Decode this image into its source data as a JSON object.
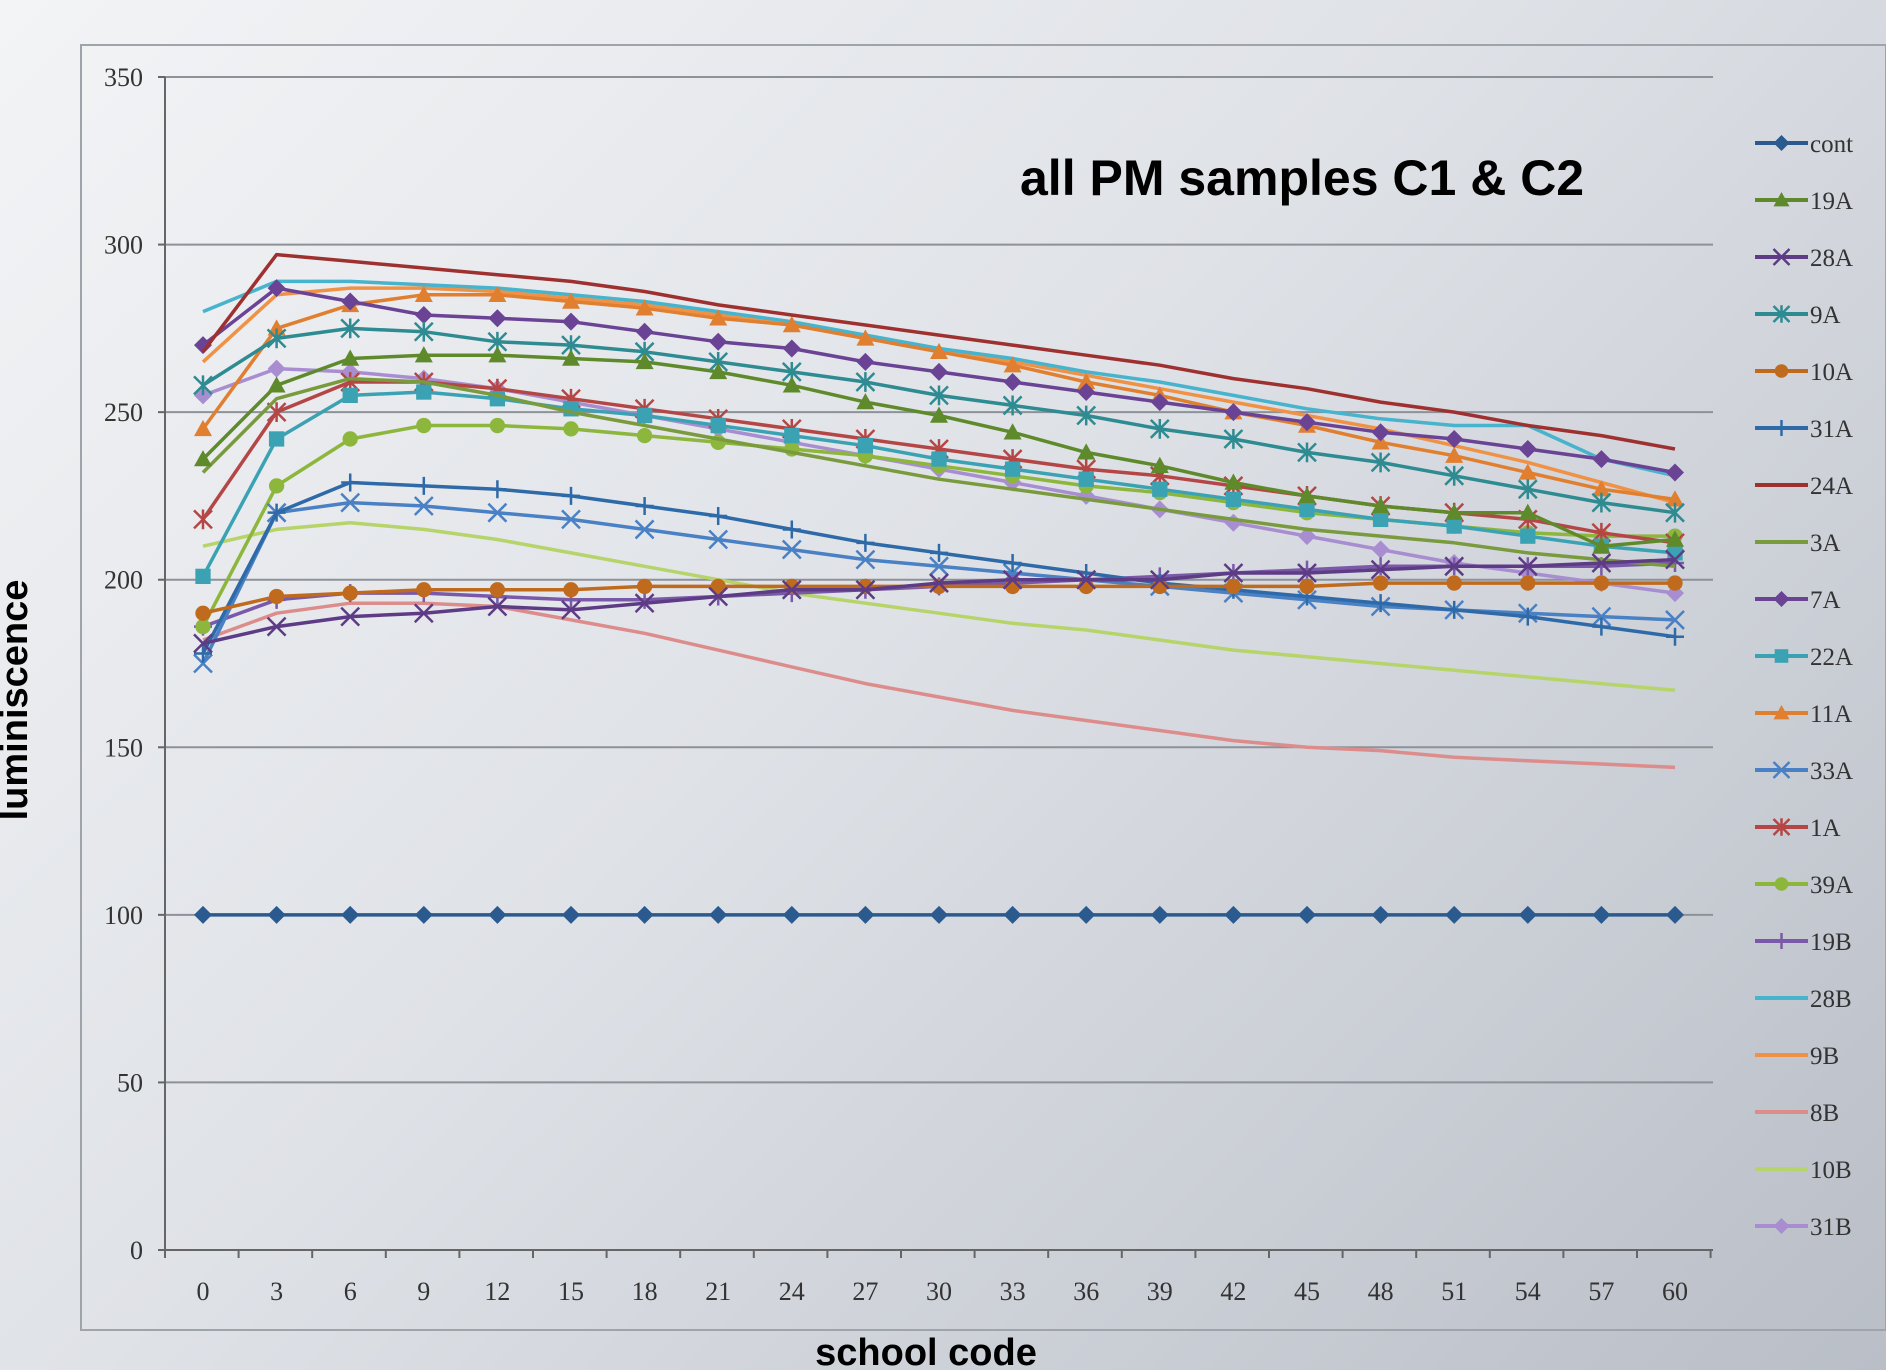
{
  "chart_data": {
    "type": "line",
    "title": "all PM samples C1 & C2",
    "xlabel": "school code",
    "ylabel": "luminiscence",
    "x": [
      0,
      3,
      6,
      9,
      12,
      15,
      18,
      21,
      24,
      27,
      30,
      33,
      36,
      39,
      42,
      45,
      48,
      51,
      54,
      57,
      60
    ],
    "ylim": [
      0,
      350
    ],
    "yticks": [
      0,
      50,
      100,
      150,
      200,
      250,
      300,
      350
    ],
    "grid": true,
    "legend_position": "right",
    "series": [
      {
        "name": "cont",
        "color": "#2b5a8f",
        "marker": "diamond",
        "values": [
          100,
          100,
          100,
          100,
          100,
          100,
          100,
          100,
          100,
          100,
          100,
          100,
          100,
          100,
          100,
          100,
          100,
          100,
          100,
          100,
          100
        ]
      },
      {
        "name": "19A",
        "color": "#5f8a2c",
        "marker": "triangle",
        "values": [
          236,
          258,
          266,
          267,
          267,
          266,
          265,
          262,
          258,
          253,
          249,
          244,
          238,
          234,
          229,
          225,
          222,
          220,
          220,
          210,
          212
        ]
      },
      {
        "name": "28A",
        "color": "#5e3b85",
        "marker": "x",
        "values": [
          181,
          186,
          189,
          190,
          192,
          191,
          193,
          195,
          197,
          197,
          199,
          200,
          200,
          200,
          202,
          202,
          203,
          204,
          204,
          205,
          206
        ]
      },
      {
        "name": "9A",
        "color": "#2e8b91",
        "marker": "star",
        "values": [
          258,
          272,
          275,
          274,
          271,
          270,
          268,
          265,
          262,
          259,
          255,
          252,
          249,
          245,
          242,
          238,
          235,
          231,
          227,
          223,
          220
        ]
      },
      {
        "name": "10A",
        "color": "#c06a1e",
        "marker": "circle",
        "values": [
          190,
          195,
          196,
          197,
          197,
          197,
          198,
          198,
          198,
          198,
          198,
          198,
          198,
          198,
          198,
          198,
          199,
          199,
          199,
          199,
          199
        ]
      },
      {
        "name": "31A",
        "color": "#2f6aa8",
        "marker": "plus",
        "values": [
          178,
          220,
          229,
          228,
          227,
          225,
          222,
          219,
          215,
          211,
          208,
          205,
          202,
          199,
          197,
          195,
          193,
          191,
          189,
          186,
          183
        ]
      },
      {
        "name": "24A",
        "color": "#9e3030",
        "marker": "none",
        "values": [
          268,
          297,
          295,
          293,
          291,
          289,
          286,
          282,
          279,
          276,
          273,
          270,
          267,
          264,
          260,
          257,
          253,
          250,
          246,
          243,
          239
        ]
      },
      {
        "name": "3A",
        "color": "#7a9a3e",
        "marker": "none",
        "values": [
          232,
          254,
          260,
          259,
          255,
          250,
          246,
          242,
          238,
          234,
          230,
          227,
          224,
          221,
          218,
          215,
          213,
          211,
          208,
          206,
          204
        ]
      },
      {
        "name": "7A",
        "color": "#6a4394",
        "marker": "diamond",
        "values": [
          270,
          287,
          283,
          279,
          278,
          277,
          274,
          271,
          269,
          265,
          262,
          259,
          256,
          253,
          250,
          247,
          244,
          242,
          239,
          236,
          232
        ]
      },
      {
        "name": "22A",
        "color": "#3ba2b4",
        "marker": "square",
        "values": [
          201,
          242,
          255,
          256,
          254,
          251,
          249,
          246,
          243,
          240,
          236,
          233,
          230,
          227,
          224,
          221,
          218,
          216,
          213,
          210,
          208
        ]
      },
      {
        "name": "11A",
        "color": "#e07f2f",
        "marker": "triangle",
        "values": [
          245,
          275,
          282,
          285,
          285,
          283,
          281,
          278,
          276,
          272,
          268,
          264,
          259,
          255,
          250,
          246,
          241,
          237,
          232,
          227,
          224
        ]
      },
      {
        "name": "33A",
        "color": "#4a80c4",
        "marker": "x",
        "values": [
          175,
          220,
          223,
          222,
          220,
          218,
          215,
          212,
          209,
          206,
          204,
          202,
          200,
          198,
          196,
          194,
          192,
          191,
          190,
          189,
          188
        ]
      },
      {
        "name": "1A",
        "color": "#b54646",
        "marker": "star",
        "values": [
          218,
          250,
          259,
          259,
          257,
          254,
          251,
          248,
          245,
          242,
          239,
          236,
          233,
          231,
          228,
          225,
          222,
          220,
          218,
          214,
          211
        ]
      },
      {
        "name": "39A",
        "color": "#8cb63c",
        "marker": "circle",
        "values": [
          186,
          228,
          242,
          246,
          246,
          245,
          243,
          241,
          239,
          237,
          234,
          231,
          228,
          226,
          223,
          220,
          218,
          216,
          214,
          213,
          213
        ]
      },
      {
        "name": "19B",
        "color": "#7a5aa8",
        "marker": "plus",
        "values": [
          186,
          194,
          196,
          196,
          195,
          194,
          194,
          195,
          196,
          197,
          198,
          199,
          200,
          201,
          202,
          203,
          204,
          204,
          204,
          204,
          205
        ]
      },
      {
        "name": "28B",
        "color": "#47b3cc",
        "marker": "none",
        "values": [
          280,
          289,
          289,
          288,
          287,
          285,
          283,
          280,
          277,
          273,
          269,
          266,
          262,
          259,
          255,
          251,
          248,
          246,
          246,
          236,
          231
        ]
      },
      {
        "name": "9B",
        "color": "#f09246",
        "marker": "none",
        "values": [
          265,
          285,
          287,
          287,
          286,
          284,
          282,
          279,
          276,
          272,
          269,
          265,
          261,
          257,
          253,
          249,
          245,
          240,
          235,
          229,
          223
        ]
      },
      {
        "name": "8B",
        "color": "#dd8c8c",
        "marker": "none",
        "values": [
          182,
          190,
          193,
          193,
          192,
          188,
          184,
          179,
          174,
          169,
          165,
          161,
          158,
          155,
          152,
          150,
          149,
          147,
          146,
          145,
          144
        ]
      },
      {
        "name": "10B",
        "color": "#b6d46a",
        "marker": "none",
        "values": [
          210,
          215,
          217,
          215,
          212,
          208,
          204,
          200,
          196,
          193,
          190,
          187,
          185,
          182,
          179,
          177,
          175,
          173,
          171,
          169,
          167
        ]
      },
      {
        "name": "31B",
        "color": "#a88ed0",
        "marker": "diamond",
        "values": [
          255,
          263,
          262,
          260,
          257,
          253,
          249,
          245,
          241,
          237,
          233,
          229,
          225,
          221,
          217,
          213,
          209,
          205,
          202,
          199,
          196
        ]
      }
    ]
  }
}
